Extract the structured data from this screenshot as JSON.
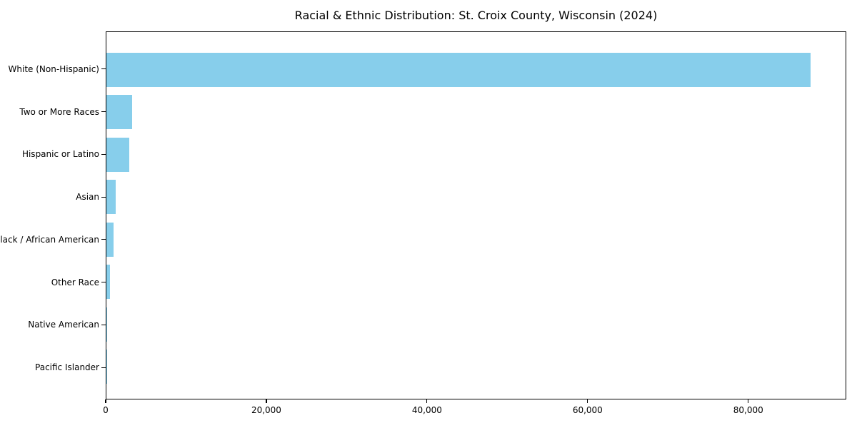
{
  "title": "Racial & Ethnic Distribution: St. Croix County, Wisconsin (2024)",
  "chart_data": {
    "type": "bar",
    "orientation": "horizontal",
    "title": "Racial & Ethnic Distribution: St. Croix County, Wisconsin (2024)",
    "xlabel": "",
    "ylabel": "",
    "categories": [
      "White (Non-Hispanic)",
      "Two or More Races",
      "Hispanic or Latino",
      "Asian",
      "Black / African American",
      "Other Race",
      "Native American",
      "Pacific Islander"
    ],
    "values": [
      87800,
      3200,
      2850,
      1150,
      860,
      420,
      60,
      15
    ],
    "xlim": [
      0,
      92200
    ],
    "x_ticks": [
      0,
      20000,
      40000,
      60000,
      80000
    ],
    "x_tick_labels": [
      "0",
      "20,000",
      "40,000",
      "60,000",
      "80,000"
    ],
    "bar_color": "#87CEEB",
    "grid": false,
    "legend": false,
    "background_color": "#ffffff",
    "frame_color": "#000000"
  }
}
